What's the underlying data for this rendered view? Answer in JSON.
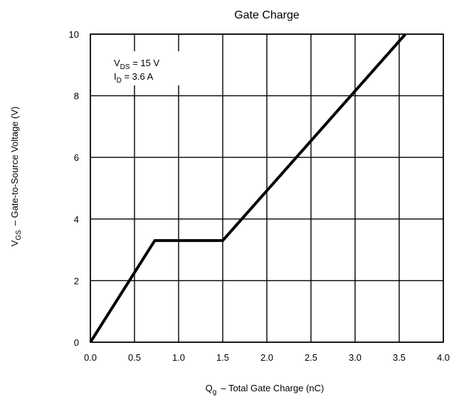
{
  "chart_data": {
    "type": "line",
    "title": "Gate Charge",
    "xlabel": {
      "symbol": "Q",
      "subscript": "g",
      "text": "–  Total Gate Charge (nC)"
    },
    "ylabel": {
      "symbol": "V",
      "subscript": "GS",
      "text": "–  Gate-to-Source Voltage (V)"
    },
    "xlim": [
      0,
      4
    ],
    "ylim": [
      0,
      10
    ],
    "x_ticks": [
      "0.0",
      "0.5",
      "1.0",
      "1.5",
      "2.0",
      "2.5",
      "3.0",
      "3.5",
      "4.0"
    ],
    "y_ticks": [
      "0",
      "2",
      "4",
      "6",
      "8",
      "10"
    ],
    "grid": true,
    "annotations": [
      {
        "symbol": "V",
        "subscript": "DS",
        "text": " = 15 V"
      },
      {
        "symbol": "I",
        "subscript": "D",
        "text": " = 3.6 A"
      }
    ],
    "series": [
      {
        "x": [
          0.0,
          0.73,
          1.5,
          3.57
        ],
        "y": [
          0.0,
          3.3,
          3.3,
          10.0
        ]
      }
    ]
  }
}
